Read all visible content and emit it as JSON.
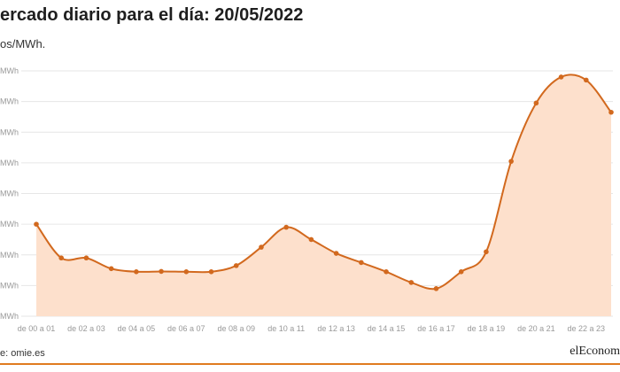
{
  "header": {
    "title": "ercado diario para el día: 20/05/2022",
    "subtitle": "os/MWh."
  },
  "footer": {
    "source": "e: omie.es",
    "brand": "elEconom"
  },
  "colors": {
    "line": "#d2691e",
    "fill": "#fde0cc",
    "grid": "#e6e6e6",
    "rule": "#e07b20"
  },
  "chart_data": {
    "type": "area",
    "y_tick_labels": [
      "MWh",
      "MWh",
      "MWh",
      "MWh",
      "MWh",
      "MWh",
      "MWh",
      "MWh",
      "MWh"
    ],
    "x_tick_labels": [
      "de 00 a 01",
      "de 02 a 03",
      "de 04 a 05",
      "de 06 a 07",
      "de 08 a 09",
      "de 10 a 11",
      "de 12 a 13",
      "de 14 a 15",
      "de 16 a 17",
      "de 18 a 19",
      "de 20 a 21",
      "de 22 a 23"
    ],
    "ylim": [
      0,
      8
    ],
    "grid": true,
    "values": [
      3.0,
      1.9,
      1.9,
      1.55,
      1.45,
      1.46,
      1.45,
      1.45,
      1.65,
      2.25,
      2.9,
      2.5,
      2.05,
      1.75,
      1.45,
      1.1,
      0.9,
      1.45,
      2.1,
      5.05,
      6.95,
      7.8,
      7.7,
      6.65
    ]
  }
}
